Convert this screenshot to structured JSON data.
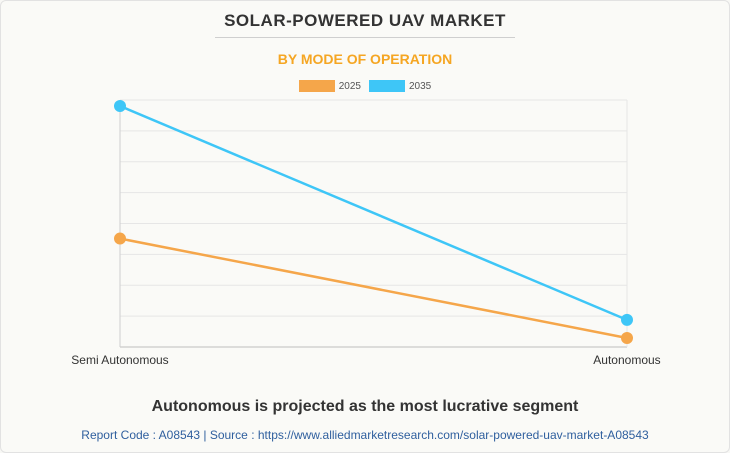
{
  "header": {
    "title": "SOLAR-POWERED UAV MARKET",
    "subtitle": "BY MODE OF OPERATION"
  },
  "footer": {
    "headline": "Autonomous is projected as the most lucrative segment",
    "source": "Report Code : A08543  |  Source : https://www.alliedmarketresearch.com/solar-powered-uav-market-A08543"
  },
  "colors": {
    "series_2025": "#f5a64a",
    "series_2035": "#3ec6f7",
    "subtitle": "#f5a623"
  },
  "chart_data": {
    "type": "line",
    "categories": [
      "Semi Autonomous",
      "Autonomous"
    ],
    "series": [
      {
        "name": "2025",
        "values": [
          3.6,
          0.3
        ]
      },
      {
        "name": "2035",
        "values": [
          8.0,
          0.9
        ]
      }
    ],
    "ylim": [
      0,
      8.2
    ],
    "grid": true,
    "legend": "top-center",
    "y_tick_labels_shown": false
  }
}
